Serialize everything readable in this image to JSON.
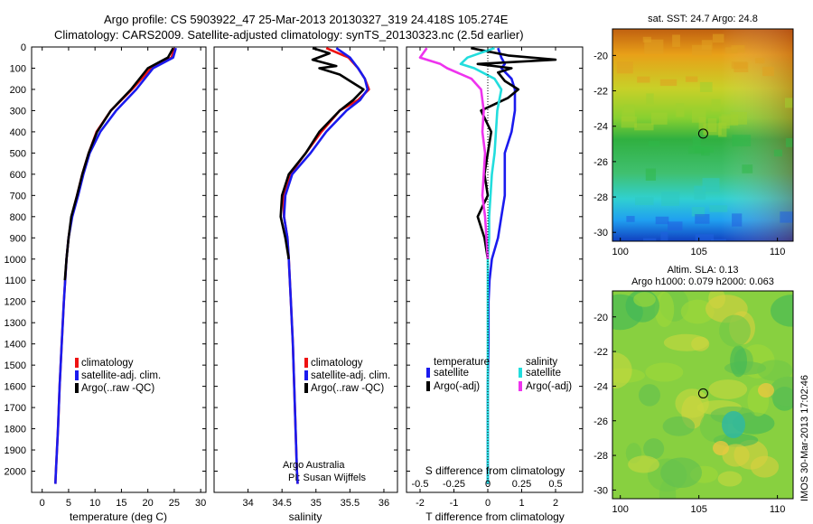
{
  "header": {
    "line1": "Argo profile: CS 5903922_47 25-Mar-2013 20130327_319 24.418S 105.274E",
    "line2": "Climatology: CARS2009. Satellite-adjusted climatology: synTS_20130323.nc (2.5d earlier)"
  },
  "depth_ticks": [
    "0",
    "100",
    "200",
    "300",
    "400",
    "500",
    "600",
    "700",
    "800",
    "900",
    "1000",
    "1100",
    "1200",
    "1300",
    "1400",
    "1500",
    "1600",
    "1700",
    "1800",
    "1900",
    "2000"
  ],
  "colors": {
    "climatology": "#ee1111",
    "satellite": "#1a1aee",
    "argo": "#000000",
    "sal_satellite": "#22dddd",
    "sal_argo": "#ee33ee"
  },
  "chart_data": [
    {
      "type": "line",
      "name_key": "temperature",
      "xlabel": "temperature (deg C)",
      "xlim": [
        -2,
        31
      ],
      "ylim": [
        2100,
        0
      ],
      "xticks": [
        "0",
        "5",
        "10",
        "15",
        "20",
        "25",
        "30"
      ],
      "legend": {
        "placement": "lower-middle",
        "entries": [
          "climatology",
          "satellite-adj. clim.",
          "Argo(..raw -QC)"
        ]
      },
      "series": [
        {
          "name": "climatology",
          "depth": [
            5,
            50,
            100,
            200,
            300,
            400,
            500,
            600,
            700,
            800,
            900,
            1000,
            1200,
            1400,
            1600,
            1800,
            2000,
            2060
          ],
          "values": [
            25.0,
            24.5,
            20.6,
            17.0,
            13.0,
            10.3,
            8.8,
            7.6,
            6.6,
            5.6,
            5.0,
            4.6,
            4.1,
            3.7,
            3.3,
            3.0,
            2.6,
            2.5
          ]
        },
        {
          "name": "satellite-adj. clim.",
          "depth": [
            5,
            50,
            100,
            200,
            300,
            400,
            500,
            600,
            700,
            800,
            900,
            1000,
            1200,
            1400,
            1600,
            1800,
            2000,
            2060
          ],
          "values": [
            25.3,
            24.8,
            21.0,
            17.8,
            14.0,
            11.0,
            9.0,
            7.8,
            6.8,
            5.7,
            5.0,
            4.6,
            4.1,
            3.7,
            3.3,
            3.0,
            2.6,
            2.5
          ]
        },
        {
          "name": "Argo(..raw -QC)",
          "depth": [
            5,
            50,
            100,
            200,
            300,
            400,
            500,
            600,
            700,
            800,
            900,
            1000,
            1100
          ],
          "values": [
            24.8,
            23.8,
            20.0,
            16.8,
            13.0,
            10.4,
            8.8,
            7.6,
            6.6,
            5.5,
            5.0,
            4.6,
            4.3
          ]
        }
      ]
    },
    {
      "type": "line",
      "name_key": "salinity",
      "xlabel": "salinity",
      "xlim": [
        33.5,
        36.2
      ],
      "ylim": [
        2100,
        0
      ],
      "xticks": [
        "34",
        "34.5",
        "35",
        "35.5",
        "36"
      ],
      "legend": {
        "placement": "lower-middle",
        "entries": [
          "climatology",
          "satellite-adj. clim.",
          "Argo(..raw -QC)"
        ]
      },
      "annotation": [
        "Argo Australia",
        "PI: Susan Wijffels"
      ],
      "series": [
        {
          "name": "climatology",
          "depth": [
            5,
            50,
            100,
            150,
            200,
            250,
            300,
            400,
            500,
            600,
            700,
            800,
            900,
            1000,
            1200,
            1400,
            1600,
            1800,
            2000,
            2060
          ],
          "values": [
            35.15,
            35.48,
            35.62,
            35.72,
            35.78,
            35.62,
            35.35,
            35.08,
            34.85,
            34.62,
            34.52,
            34.53,
            34.58,
            34.6,
            34.63,
            34.66,
            34.68,
            34.7,
            34.72,
            34.73
          ]
        },
        {
          "name": "satellite-adj. clim.",
          "depth": [
            5,
            50,
            100,
            150,
            200,
            250,
            300,
            400,
            500,
            600,
            700,
            800,
            900,
            1000,
            1200,
            1400,
            1600,
            1800,
            2000,
            2060
          ],
          "values": [
            35.3,
            35.5,
            35.62,
            35.72,
            35.76,
            35.65,
            35.45,
            35.15,
            34.92,
            34.65,
            34.55,
            34.53,
            34.58,
            34.6,
            34.63,
            34.66,
            34.68,
            34.7,
            34.72,
            34.73
          ]
        },
        {
          "name": "Argo(..raw -QC)",
          "depth": [
            5,
            30,
            60,
            90,
            100,
            130,
            160,
            200,
            250,
            300,
            400,
            500,
            600,
            700,
            800,
            900,
            1000
          ],
          "values": [
            34.95,
            35.2,
            34.95,
            35.3,
            35.05,
            35.35,
            35.5,
            35.7,
            35.55,
            35.35,
            35.05,
            34.85,
            34.6,
            34.5,
            34.48,
            34.55,
            34.6
          ]
        }
      ]
    },
    {
      "type": "line",
      "name_key": "differences",
      "xlabel": "T difference from climatology",
      "x2label": "S difference from climatology",
      "xlim": [
        -2.4,
        2.8
      ],
      "ylim": [
        2100,
        0
      ],
      "xticks": [
        "-2",
        "-1",
        "0",
        "1",
        "2"
      ],
      "x2ticks": [
        "-0.5",
        "-0.25",
        "0",
        "0.25",
        "0.5"
      ],
      "x2lim": [
        -0.6,
        0.7
      ],
      "legend": {
        "placement": "lower",
        "temp_title": "temperature",
        "sal_title": "salinity",
        "temp_entries": [
          "satellite",
          "Argo(-adj)"
        ],
        "sal_entries": [
          "satellite",
          "Argo(-adj)"
        ]
      },
      "series": [
        {
          "name": "temperature satellite",
          "axis": "T",
          "depth": [
            5,
            50,
            80,
            100,
            150,
            200,
            300,
            400,
            500,
            600,
            700,
            800,
            900,
            1000,
            1100,
            1200,
            1400,
            1600,
            1800,
            2000,
            2060
          ],
          "values": [
            0.3,
            0.4,
            0.5,
            0.4,
            0.7,
            0.8,
            0.8,
            0.7,
            0.5,
            0.5,
            0.5,
            0.4,
            0.3,
            0.12,
            0.05,
            0.02,
            0.02,
            0.0,
            0.0,
            0.0,
            0.0
          ]
        },
        {
          "name": "temperature Argo(-adj)",
          "axis": "T",
          "depth": [
            5,
            40,
            60,
            80,
            100,
            120,
            160,
            200,
            240,
            300,
            400,
            500,
            600,
            700,
            800,
            900,
            1000
          ],
          "values": [
            -0.5,
            0.6,
            2.0,
            -0.3,
            0.7,
            0.3,
            0.5,
            0.9,
            0.6,
            -0.2,
            0.1,
            0.0,
            -0.1,
            0.0,
            -0.3,
            -0.1,
            0.0
          ]
        },
        {
          "name": "salinity satellite",
          "axis": "S",
          "depth": [
            5,
            50,
            80,
            100,
            150,
            200,
            300,
            400,
            500,
            600,
            700,
            800,
            900,
            1000,
            1200,
            1400,
            1600,
            1800,
            2000,
            2060
          ],
          "values": [
            0.05,
            -0.15,
            -0.2,
            -0.1,
            0.05,
            0.1,
            0.07,
            0.06,
            0.05,
            0.03,
            0.02,
            0.01,
            0.01,
            0.0,
            0.0,
            0.0,
            0.0,
            0.0,
            0.0,
            0.0
          ]
        },
        {
          "name": "salinity Argo(-adj)",
          "axis": "S",
          "depth": [
            5,
            50,
            80,
            100,
            150,
            200,
            300,
            400,
            500,
            600,
            700,
            800,
            900,
            1000
          ],
          "values": [
            -0.45,
            -0.5,
            -0.35,
            -0.3,
            -0.12,
            -0.05,
            -0.03,
            -0.04,
            -0.02,
            -0.03,
            -0.04,
            -0.02,
            -0.01,
            0.0
          ]
        }
      ]
    },
    {
      "type": "heatmap",
      "name_key": "sst_map",
      "title": "sat. SST: 24.7  Argo: 24.8",
      "xlim": [
        99.5,
        111
      ],
      "ylim": [
        -30.5,
        -18.5
      ],
      "xticks": [
        "100",
        "105",
        "110"
      ],
      "yticks": [
        "-20",
        "-22",
        "-24",
        "-26",
        "-28",
        "-30"
      ],
      "marker": {
        "lon": 105.274,
        "lat": -24.418
      }
    },
    {
      "type": "heatmap",
      "name_key": "sla_map",
      "title": [
        "Altim. SLA: 0.13",
        "Argo h1000: 0.079  h2000: 0.063"
      ],
      "xlim": [
        99.5,
        111
      ],
      "ylim": [
        -30.5,
        -18.5
      ],
      "xticks": [
        "100",
        "105",
        "110"
      ],
      "yticks": [
        "-20",
        "-22",
        "-24",
        "-26",
        "-28",
        "-30"
      ],
      "marker": {
        "lon": 105.274,
        "lat": -24.418
      }
    }
  ],
  "credit": "IMOS 30-Mar-2013 17:02:46"
}
